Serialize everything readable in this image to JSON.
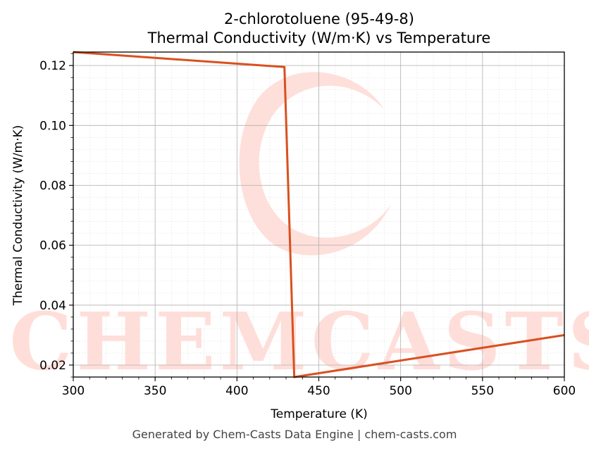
{
  "chart_data": {
    "type": "line",
    "title": "2-chlorotoluene (95-49-8)",
    "subtitle": "Thermal Conductivity (W/m·K) vs Temperature",
    "xlabel": "Temperature (K)",
    "ylabel": "Thermal Conductivity (W/m·K)",
    "xlim": [
      300,
      600
    ],
    "ylim": [
      0.016,
      0.1245
    ],
    "xticks": [
      300,
      350,
      400,
      450,
      500,
      550,
      600
    ],
    "yticks": [
      0.02,
      0.04,
      0.06,
      0.08,
      0.1,
      0.12
    ],
    "ytick_labels": [
      "0.02",
      "0.04",
      "0.06",
      "0.08",
      "0.10",
      "0.12"
    ],
    "grid": true,
    "series": [
      {
        "color": "#d9501f",
        "x": [
          300,
          429,
          435,
          600
        ],
        "y": [
          0.1245,
          0.1195,
          0.016,
          0.03
        ]
      }
    ]
  },
  "watermark": "CHEMCASTS",
  "footer": "Generated by Chem-Casts Data Engine | chem-casts.com"
}
